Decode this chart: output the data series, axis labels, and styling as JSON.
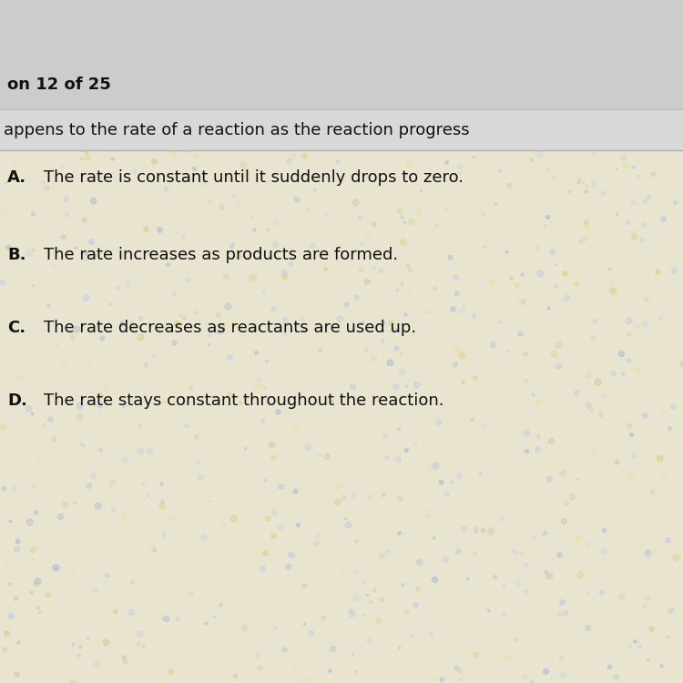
{
  "header_label": "on 12 of 25",
  "question_text": "appens to the rate of a reaction as the reaction progress",
  "options": [
    {
      "letter": "A.",
      "text": "The rate is constant until it suddenly drops to zero."
    },
    {
      "letter": "B.",
      "text": "The rate increases as products are formed."
    },
    {
      "letter": "C.",
      "text": "The rate decreases as reactants are used up."
    },
    {
      "letter": "D.",
      "text": "The rate stays constant throughout the reaction."
    }
  ],
  "header_bg": "#cccccc",
  "question_bg": "#d8d8d8",
  "body_bg": "#e8e4d0",
  "header_text_color": "#111111",
  "question_text_color": "#111111",
  "option_letter_color": "#111111",
  "option_text_color": "#111111",
  "header_fontsize": 13,
  "question_fontsize": 13,
  "option_fontsize": 13,
  "divider_color": "#b0b0b0",
  "fig_width": 7.5,
  "fig_height": 7.5
}
